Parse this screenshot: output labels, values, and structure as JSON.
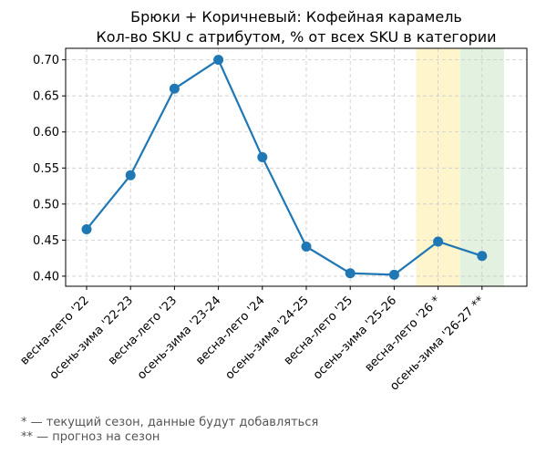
{
  "chart_data": {
    "type": "line",
    "title": "Брюки + Коричневый: Кофейная карамель",
    "subtitle": "Кол-во SKU с атрибутом, % от всех SKU в категории",
    "categories": [
      "весна-лето '22",
      "осень-зима '22-23",
      "весна-лето '23",
      "осень-зима '23-24",
      "весна-лето '24",
      "осень-зима '24-25",
      "весна-лето '25",
      "осень-зима '25-26",
      "весна-лето '26 *",
      "осень-зима '26-27 **"
    ],
    "series": [
      {
        "values": [
          0.465,
          0.54,
          0.66,
          0.7,
          0.565,
          0.441,
          0.404,
          0.402,
          0.448,
          0.428
        ]
      }
    ],
    "ylim": [
      0.386,
      0.716
    ],
    "yticks": [
      "0.40",
      "0.45",
      "0.50",
      "0.55",
      "0.60",
      "0.65",
      "0.70"
    ],
    "grid": true,
    "highlights": [
      {
        "category": "весна-лето '26 *",
        "color": "#fff5cc"
      },
      {
        "category": "осень-зима '26-27 **",
        "color": "#e3f1e1"
      }
    ],
    "line_color": "#1f77b4"
  },
  "footnotes": {
    "current": "* — текущий сезон, данные будут добавляться",
    "forecast": "** — прогноз на сезон"
  }
}
